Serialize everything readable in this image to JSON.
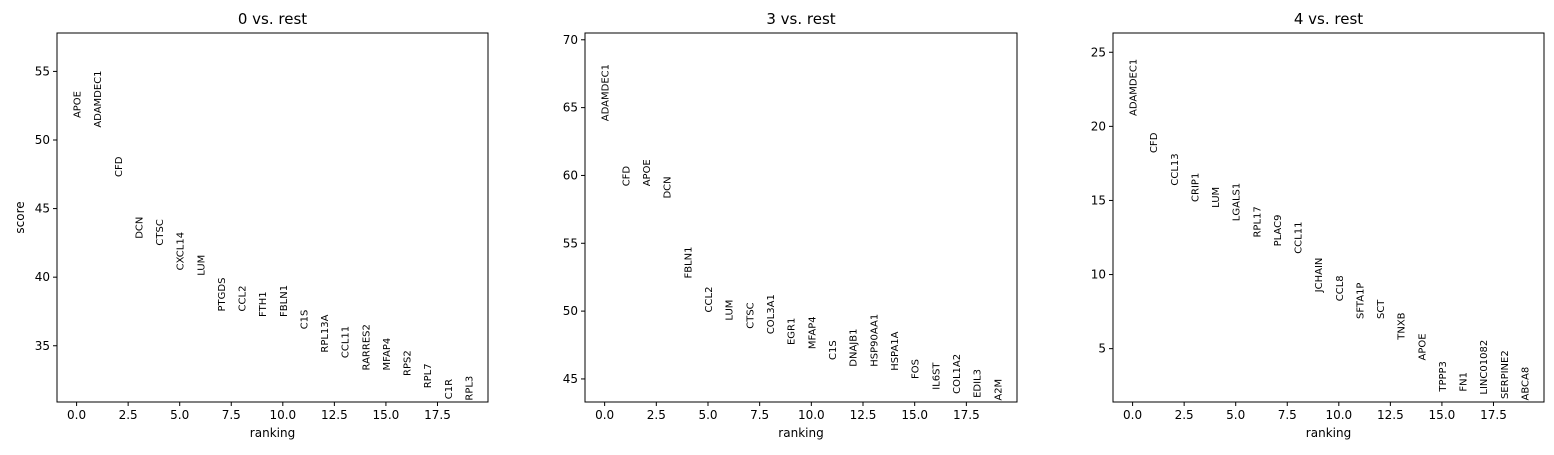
{
  "chart_data": [
    {
      "type": "scatter",
      "title": "0 vs. rest",
      "xlabel": "ranking",
      "ylabel": "score",
      "xlim": [
        -0.95,
        19.95
      ],
      "ylim": [
        30.9,
        57.8
      ],
      "xticks": [
        0.0,
        2.5,
        5.0,
        7.5,
        10.0,
        12.5,
        15.0,
        17.5
      ],
      "xtick_labels": [
        "0.0",
        "2.5",
        "5.0",
        "7.5",
        "10.0",
        "12.5",
        "15.0",
        "17.5"
      ],
      "yticks": [
        35,
        40,
        45,
        50,
        55
      ],
      "ytick_labels": [
        "35",
        "40",
        "45",
        "50",
        "55"
      ],
      "points": [
        {
          "rank": 0,
          "gene": "APOE",
          "score": 51.6
        },
        {
          "rank": 1,
          "gene": "ADAMDEC1",
          "score": 50.9
        },
        {
          "rank": 2,
          "gene": "CFD",
          "score": 47.3
        },
        {
          "rank": 3,
          "gene": "DCN",
          "score": 42.8
        },
        {
          "rank": 4,
          "gene": "CTSC",
          "score": 42.3
        },
        {
          "rank": 5,
          "gene": "CXCL14",
          "score": 40.5
        },
        {
          "rank": 6,
          "gene": "LUM",
          "score": 40.1
        },
        {
          "rank": 7,
          "gene": "PTGDS",
          "score": 37.5
        },
        {
          "rank": 8,
          "gene": "CCL2",
          "score": 37.5
        },
        {
          "rank": 9,
          "gene": "FTH1",
          "score": 37.1
        },
        {
          "rank": 10,
          "gene": "FBLN1",
          "score": 37.1
        },
        {
          "rank": 11,
          "gene": "C1S",
          "score": 36.2
        },
        {
          "rank": 12,
          "gene": "RPL13A",
          "score": 34.5
        },
        {
          "rank": 13,
          "gene": "CCL11",
          "score": 34.1
        },
        {
          "rank": 14,
          "gene": "RARRES2",
          "score": 33.2
        },
        {
          "rank": 15,
          "gene": "MFAP4",
          "score": 33.2
        },
        {
          "rank": 16,
          "gene": "RPS2",
          "score": 32.8
        },
        {
          "rank": 17,
          "gene": "RPL7",
          "score": 31.9
        },
        {
          "rank": 18,
          "gene": "C1R",
          "score": 31.1
        },
        {
          "rank": 19,
          "gene": "RPL3",
          "score": 31.0
        }
      ]
    },
    {
      "type": "scatter",
      "title": "3 vs. rest",
      "xlabel": "ranking",
      "ylabel": "",
      "xlim": [
        -0.95,
        19.95
      ],
      "ylim": [
        43.3,
        70.5
      ],
      "xticks": [
        0.0,
        2.5,
        5.0,
        7.5,
        10.0,
        12.5,
        15.0,
        17.5
      ],
      "xtick_labels": [
        "0.0",
        "2.5",
        "5.0",
        "7.5",
        "10.0",
        "12.5",
        "15.0",
        "17.5"
      ],
      "yticks": [
        45,
        50,
        55,
        60,
        65,
        70
      ],
      "ytick_labels": [
        "45",
        "50",
        "55",
        "60",
        "65",
        "70"
      ],
      "points": [
        {
          "rank": 0,
          "gene": "ADAMDEC1",
          "score": 64.0
        },
        {
          "rank": 1,
          "gene": "CFD",
          "score": 59.2
        },
        {
          "rank": 2,
          "gene": "APOE",
          "score": 59.2
        },
        {
          "rank": 3,
          "gene": "DCN",
          "score": 58.3
        },
        {
          "rank": 4,
          "gene": "FBLN1",
          "score": 52.4
        },
        {
          "rank": 5,
          "gene": "CCL2",
          "score": 49.9
        },
        {
          "rank": 6,
          "gene": "LUM",
          "score": 49.3
        },
        {
          "rank": 7,
          "gene": "CTSC",
          "score": 48.7
        },
        {
          "rank": 8,
          "gene": "COL3A1",
          "score": 48.3
        },
        {
          "rank": 9,
          "gene": "EGR1",
          "score": 47.5
        },
        {
          "rank": 10,
          "gene": "MFAP4",
          "score": 47.2
        },
        {
          "rank": 11,
          "gene": "C1S",
          "score": 46.4
        },
        {
          "rank": 12,
          "gene": "DNAJB1",
          "score": 45.9
        },
        {
          "rank": 13,
          "gene": "HSP90AA1",
          "score": 45.9
        },
        {
          "rank": 14,
          "gene": "HSPA1A",
          "score": 45.6
        },
        {
          "rank": 15,
          "gene": "FOS",
          "score": 45.0
        },
        {
          "rank": 16,
          "gene": "IL6ST",
          "score": 44.2
        },
        {
          "rank": 17,
          "gene": "COL1A2",
          "score": 43.9
        },
        {
          "rank": 18,
          "gene": "EDIL3",
          "score": 43.6
        },
        {
          "rank": 19,
          "gene": "A2M",
          "score": 43.4
        }
      ]
    },
    {
      "type": "scatter",
      "title": "4 vs. rest",
      "xlabel": "ranking",
      "ylabel": "",
      "xlim": [
        -0.95,
        19.95
      ],
      "ylim": [
        1.4,
        26.3
      ],
      "xticks": [
        0.0,
        2.5,
        5.0,
        7.5,
        10.0,
        12.5,
        15.0,
        17.5
      ],
      "xtick_labels": [
        "0.0",
        "2.5",
        "5.0",
        "7.5",
        "10.0",
        "12.5",
        "15.0",
        "17.5"
      ],
      "yticks": [
        5,
        10,
        15,
        20,
        25
      ],
      "ytick_labels": [
        "5",
        "10",
        "15",
        "20",
        "25"
      ],
      "points": [
        {
          "rank": 0,
          "gene": "ADAMDEC1",
          "score": 20.7
        },
        {
          "rank": 1,
          "gene": "CFD",
          "score": 18.2
        },
        {
          "rank": 2,
          "gene": "CCL13",
          "score": 16.0
        },
        {
          "rank": 3,
          "gene": "CRIP1",
          "score": 14.9
        },
        {
          "rank": 4,
          "gene": "LUM",
          "score": 14.5
        },
        {
          "rank": 5,
          "gene": "LGALS1",
          "score": 13.6
        },
        {
          "rank": 6,
          "gene": "RPL17",
          "score": 12.5
        },
        {
          "rank": 7,
          "gene": "PLAC9",
          "score": 11.9
        },
        {
          "rank": 8,
          "gene": "CCL11",
          "score": 11.4
        },
        {
          "rank": 9,
          "gene": "JCHAIN",
          "score": 8.8
        },
        {
          "rank": 10,
          "gene": "CCL8",
          "score": 8.2
        },
        {
          "rank": 11,
          "gene": "SFTA1P",
          "score": 7.0
        },
        {
          "rank": 12,
          "gene": "SCT",
          "score": 7.0
        },
        {
          "rank": 13,
          "gene": "TNXB",
          "score": 5.6
        },
        {
          "rank": 14,
          "gene": "APOE",
          "score": 4.2
        },
        {
          "rank": 15,
          "gene": "TPPP3",
          "score": 2.1
        },
        {
          "rank": 16,
          "gene": "FN1",
          "score": 2.1
        },
        {
          "rank": 17,
          "gene": "LINC01082",
          "score": 1.9
        },
        {
          "rank": 18,
          "gene": "SERPINE2",
          "score": 1.6
        },
        {
          "rank": 19,
          "gene": "ABCA8",
          "score": 1.5
        }
      ]
    }
  ]
}
